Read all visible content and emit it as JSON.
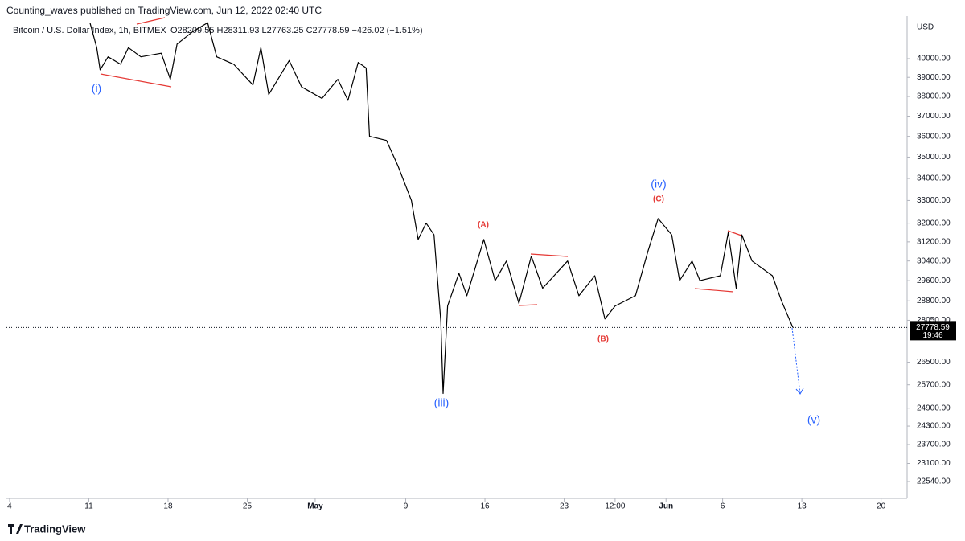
{
  "header": {
    "publisher": "Counting_waves published on TradingView.com, Jun 12, 2022 02:40 UTC",
    "symbol": "Bitcoin / U.S. Dollar Index, 1h, BITMEX",
    "ohlc": "O28209.55 H28311.93 L27763.25 C27778.59 −426.02 (−1.51%)"
  },
  "chart_data": {
    "type": "line",
    "color": "#000000",
    "log_scale": true,
    "grid": false,
    "y_axis_label": "USD",
    "x": [
      7.1,
      7.7,
      8.0,
      8.7,
      9.8,
      10.5,
      11.6,
      13.4,
      14.2,
      14.8,
      16.2,
      17.5,
      18.3,
      19.8,
      21.5,
      22.2,
      22.9,
      24.7,
      25.8,
      27.6,
      29.0,
      29.9,
      30.8,
      31.5,
      31.8,
      33.3,
      34.3,
      35.5,
      36.1,
      36.8,
      37.5,
      38.1,
      38.3,
      38.7,
      39.7,
      40.4,
      41.9,
      42.9,
      43.9,
      45.0,
      46.1,
      47.1,
      49.3,
      50.3,
      51.7,
      52.6,
      53.5,
      55.3,
      56.4,
      57.3,
      58.5,
      59.2,
      60.3,
      61.0,
      62.8,
      63.5,
      64.2,
      64.7,
      65.6,
      67.4,
      68.2,
      69.2
    ],
    "values": [
      42000,
      40600,
      39400,
      40100,
      39700,
      40600,
      40100,
      40300,
      38900,
      40800,
      41500,
      42000,
      40100,
      39700,
      38600,
      40600,
      38100,
      39900,
      38500,
      37900,
      38900,
      37800,
      39800,
      39500,
      36000,
      35800,
      34600,
      33000,
      31300,
      32000,
      31500,
      28000,
      25400,
      28600,
      29900,
      29000,
      31300,
      29600,
      30400,
      28700,
      30600,
      29300,
      30400,
      29000,
      29800,
      28100,
      28600,
      29000,
      30800,
      32200,
      31500,
      29600,
      30400,
      29600,
      29800,
      31600,
      29300,
      31500,
      30400,
      29800,
      28800,
      27778.59
    ],
    "xlim": [
      -0.28,
      79.3
    ],
    "xticks": [
      {
        "value": 0,
        "label": "4"
      },
      {
        "value": 7,
        "label": "11"
      },
      {
        "value": 14,
        "label": "18"
      },
      {
        "value": 21,
        "label": "25"
      },
      {
        "value": 27,
        "label": "May"
      },
      {
        "value": 35,
        "label": "9"
      },
      {
        "value": 42,
        "label": "16"
      },
      {
        "value": 49,
        "label": "23"
      },
      {
        "value": 53.5,
        "label": "12:00"
      },
      {
        "value": 58,
        "label": "Jun"
      },
      {
        "value": 63,
        "label": "6"
      },
      {
        "value": 70,
        "label": "13"
      },
      {
        "value": 77,
        "label": "20"
      }
    ],
    "ylim": [
      22030,
      42380
    ],
    "yticks": [
      {
        "value": 40000,
        "label": "40000.00"
      },
      {
        "value": 39000,
        "label": "39000.00"
      },
      {
        "value": 38000,
        "label": "38000.00"
      },
      {
        "value": 37000,
        "label": "37000.00"
      },
      {
        "value": 36000,
        "label": "36000.00"
      },
      {
        "value": 35000,
        "label": "35000.00"
      },
      {
        "value": 34000,
        "label": "34000.00"
      },
      {
        "value": 33000,
        "label": "33000.00"
      },
      {
        "value": 32000,
        "label": "32000.00"
      },
      {
        "value": 31200,
        "label": "31200.00"
      },
      {
        "value": 30400,
        "label": "30400.00"
      },
      {
        "value": 29600,
        "label": "29600.00"
      },
      {
        "value": 28800,
        "label": "28800.00"
      },
      {
        "value": 28050,
        "label": "28050.00"
      },
      {
        "value": 26500,
        "label": "26500.00"
      },
      {
        "value": 25700,
        "label": "25700.00"
      },
      {
        "value": 24900,
        "label": "24900.00"
      },
      {
        "value": 24300,
        "label": "24300.00"
      },
      {
        "value": 23700,
        "label": "23700.00"
      },
      {
        "value": 23100,
        "label": "23100.00"
      },
      {
        "value": 22540,
        "label": "22540.00"
      }
    ],
    "countdown": "19:46",
    "annotations": [
      {
        "text": "(i)",
        "color": "#2962ff"
      },
      {
        "text": "(iii)",
        "color": "#2962ff"
      },
      {
        "text": "(iv)",
        "color": "#2962ff"
      },
      {
        "text": "(v)",
        "color": "#2962ff"
      },
      {
        "text": "(A)",
        "color": "#e53935"
      },
      {
        "text": "(B)",
        "color": "#e53935"
      },
      {
        "text": "(C)",
        "color": "#e53935"
      }
    ]
  },
  "footer": {
    "brand": "TradingView"
  }
}
